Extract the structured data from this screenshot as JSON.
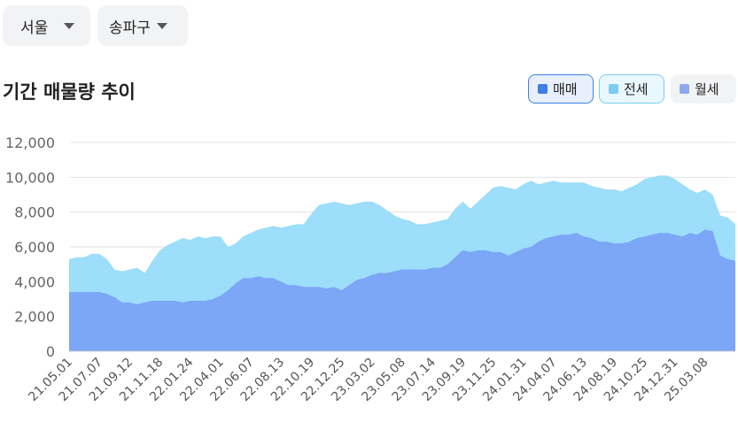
{
  "filters": {
    "city": "서울",
    "district": "송파구"
  },
  "chart_data": {
    "type": "area",
    "title": "기간 매물량 추이",
    "categories": [
      "21.05.01",
      null,
      null,
      null,
      "21.07.07",
      null,
      null,
      null,
      "21.09.12",
      null,
      null,
      null,
      "21.11.18",
      null,
      null,
      null,
      "22.01.24",
      null,
      null,
      null,
      "22.04.01",
      null,
      null,
      null,
      "22.06.07",
      null,
      null,
      null,
      "22.08.13",
      null,
      null,
      null,
      "22.10.19",
      null,
      null,
      null,
      "22.12.25",
      null,
      null,
      null,
      "23.03.02",
      null,
      null,
      null,
      "23.05.08",
      null,
      null,
      null,
      "23.07.14",
      null,
      null,
      null,
      "23.09.19",
      null,
      null,
      null,
      "23.11.25",
      null,
      null,
      null,
      "24.01.31",
      null,
      null,
      null,
      "24.04.07",
      null,
      null,
      null,
      "24.06.13",
      null,
      null,
      null,
      "24.08.19",
      null,
      null,
      null,
      "24.10.25",
      null,
      null,
      null,
      "24.12.31",
      null,
      null,
      null,
      "25.03.08",
      null,
      null,
      null,
      null
    ],
    "series": [
      {
        "name": "매매",
        "color": "#7aa2f6",
        "legend_color": "#3d7fe6",
        "active": true,
        "values": [
          3400,
          3400,
          3400,
          3400,
          3400,
          3300,
          3100,
          2800,
          2800,
          2700,
          2800,
          2900,
          2900,
          2900,
          2900,
          2800,
          2900,
          2900,
          2900,
          3000,
          3200,
          3500,
          3900,
          4200,
          4200,
          4300,
          4200,
          4200,
          4000,
          3800,
          3800,
          3700,
          3700,
          3700,
          3600,
          3700,
          3500,
          3800,
          4100,
          4200,
          4400,
          4500,
          4500,
          4600,
          4700,
          4700,
          4700,
          4700,
          4800,
          4800,
          5000,
          5400,
          5800,
          5700,
          5800,
          5800,
          5700,
          5700,
          5500,
          5700,
          5900,
          6000,
          6300,
          6500,
          6600,
          6700,
          6700,
          6800,
          6600,
          6500,
          6300,
          6300,
          6200,
          6200,
          6300,
          6500,
          6600,
          6700,
          6800,
          6800,
          6700,
          6600,
          6800,
          6700,
          7000,
          6900,
          5500,
          5300,
          5200
        ]
      },
      {
        "name": "전세",
        "color": "#98dcfa",
        "legend_color": "#7ccdf3",
        "active": true,
        "values": [
          5300,
          5400,
          5400,
          5600,
          5600,
          5300,
          4700,
          4600,
          4700,
          4800,
          4500,
          5200,
          5800,
          6100,
          6300,
          6500,
          6400,
          6600,
          6500,
          6600,
          6600,
          6000,
          6200,
          6600,
          6800,
          7000,
          7100,
          7200,
          7100,
          7200,
          7300,
          7300,
          7900,
          8400,
          8500,
          8600,
          8500,
          8400,
          8500,
          8600,
          8600,
          8400,
          8100,
          7800,
          7600,
          7500,
          7300,
          7300,
          7400,
          7500,
          7600,
          8200,
          8600,
          8200,
          8600,
          9000,
          9400,
          9500,
          9400,
          9300,
          9600,
          9800,
          9600,
          9700,
          9800,
          9700,
          9700,
          9700,
          9700,
          9500,
          9400,
          9300,
          9300,
          9200,
          9400,
          9600,
          9900,
          10000,
          10100,
          10100,
          9900,
          9600,
          9300,
          9100,
          9300,
          9000,
          7800,
          7700,
          7300
        ]
      },
      {
        "name": "월세",
        "color": "#8ea8ee",
        "legend_color": "#8ea8ee",
        "active": false,
        "values": [
          null,
          null,
          null,
          null,
          null,
          null,
          null,
          null,
          null,
          null,
          null,
          null,
          null,
          null,
          null,
          null,
          null,
          null,
          null,
          null,
          null,
          null,
          null,
          null,
          null,
          null,
          null,
          null,
          null,
          null,
          null,
          null,
          null,
          null,
          null,
          null,
          null,
          null,
          null,
          null,
          null,
          null,
          null,
          null,
          null,
          null,
          null,
          null,
          null,
          null,
          null,
          null,
          null,
          null,
          null,
          null,
          null,
          null,
          null,
          null,
          null,
          null,
          null,
          null,
          null,
          null,
          null,
          null,
          null,
          null,
          null,
          null,
          null,
          null,
          null,
          null,
          null,
          null,
          null,
          null,
          null,
          null,
          null,
          null,
          null,
          null,
          null,
          null,
          null
        ]
      }
    ],
    "ylim": [
      0,
      12000
    ],
    "yticks": [
      0,
      {
        "value": 2000,
        "label": "2,000"
      },
      {
        "value": 4000,
        "label": "4,000"
      },
      {
        "value": 6000,
        "label": "6,000"
      },
      {
        "value": 8000,
        "label": "8,000"
      },
      {
        "value": 10000,
        "label": "10,000"
      },
      {
        "value": 12000,
        "label": "12,000"
      }
    ],
    "grid": true
  }
}
